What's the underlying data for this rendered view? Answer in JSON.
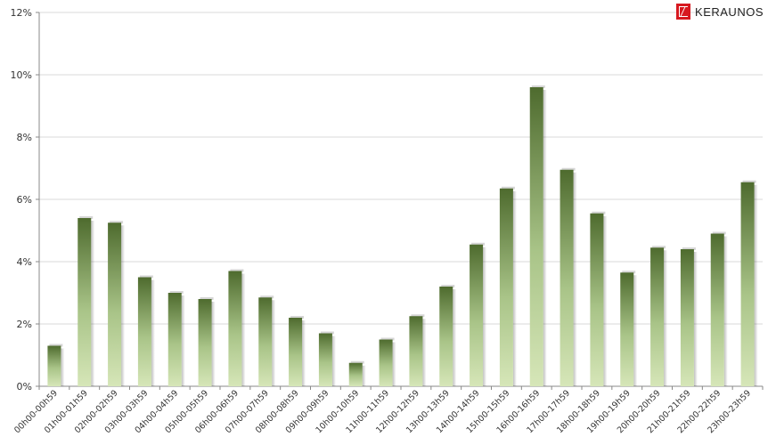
{
  "brand": {
    "name": "KERAUNOS",
    "color": "#d71920"
  },
  "chart_data": {
    "type": "bar",
    "title": "",
    "xlabel": "",
    "ylabel": "",
    "ylim": [
      0,
      12
    ],
    "y_ticks": [
      "0%",
      "2%",
      "4%",
      "6%",
      "8%",
      "10%",
      "12%"
    ],
    "grid": true,
    "colors": {
      "bar_top": "#4e6b2e",
      "bar_bottom": "#d6e6b8"
    },
    "categories": [
      "00h00-00h59",
      "01h00-01h59",
      "02h00-02h59",
      "03h00-03h59",
      "04h00-04h59",
      "05h00-05h59",
      "06h00-06h59",
      "07h00-07h59",
      "08h00-08h59",
      "09h00-09h59",
      "10h00-10h59",
      "11h00-11h59",
      "12h00-12h59",
      "13h00-13h59",
      "14h00-14h59",
      "15h00-15h59",
      "16h00-16h59",
      "17h00-17h59",
      "18h00-18h59",
      "19h00-19h59",
      "20h00-20h59",
      "21h00-21h59",
      "22h00-22h59",
      "23h00-23h59"
    ],
    "values": [
      1.3,
      5.4,
      5.25,
      3.5,
      3.0,
      2.8,
      3.7,
      2.85,
      2.2,
      1.7,
      0.75,
      1.5,
      2.25,
      3.2,
      4.55,
      6.35,
      9.6,
      6.95,
      5.55,
      3.65,
      4.45,
      4.4,
      4.9,
      6.55
    ]
  }
}
